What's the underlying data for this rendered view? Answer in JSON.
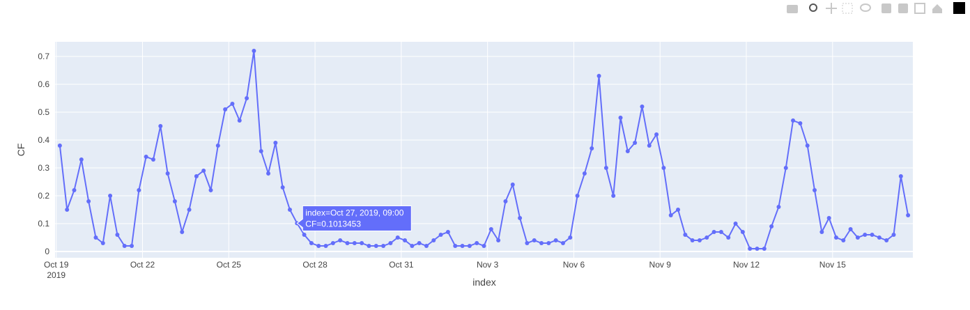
{
  "chart_data": {
    "type": "line",
    "x_label": "index",
    "y_label": "CF",
    "xlim": [
      "2019-10-18 23:00",
      "2019-11-17 19:00"
    ],
    "xticks": [
      {
        "value": "2019-10-19",
        "label": "Oct 19",
        "sublabel": "2019"
      },
      {
        "value": "2019-10-22",
        "label": "Oct 22"
      },
      {
        "value": "2019-10-25",
        "label": "Oct 25"
      },
      {
        "value": "2019-10-28",
        "label": "Oct 28"
      },
      {
        "value": "2019-10-31",
        "label": "Oct 31"
      },
      {
        "value": "2019-11-03",
        "label": "Nov 3"
      },
      {
        "value": "2019-11-06",
        "label": "Nov 6"
      },
      {
        "value": "2019-11-09",
        "label": "Nov 9"
      },
      {
        "value": "2019-11-12",
        "label": "Nov 12"
      },
      {
        "value": "2019-11-15",
        "label": "Nov 15"
      }
    ],
    "ylim": [
      -0.0225,
      0.7525
    ],
    "yticks": [
      0,
      0.1,
      0.2,
      0.3,
      0.4,
      0.5,
      0.6,
      0.7
    ],
    "grid": true,
    "x": [
      "2019-10-19 03:00",
      "2019-10-19 09:00",
      "2019-10-19 15:00",
      "2019-10-19 21:00",
      "2019-10-20 03:00",
      "2019-10-20 09:00",
      "2019-10-20 15:00",
      "2019-10-20 21:00",
      "2019-10-21 03:00",
      "2019-10-21 09:00",
      "2019-10-21 15:00",
      "2019-10-21 21:00",
      "2019-10-22 03:00",
      "2019-10-22 09:00",
      "2019-10-22 15:00",
      "2019-10-22 21:00",
      "2019-10-23 03:00",
      "2019-10-23 09:00",
      "2019-10-23 15:00",
      "2019-10-23 21:00",
      "2019-10-24 03:00",
      "2019-10-24 09:00",
      "2019-10-24 15:00",
      "2019-10-24 21:00",
      "2019-10-25 03:00",
      "2019-10-25 09:00",
      "2019-10-25 15:00",
      "2019-10-25 21:00",
      "2019-10-26 03:00",
      "2019-10-26 09:00",
      "2019-10-26 15:00",
      "2019-10-26 21:00",
      "2019-10-27 03:00",
      "2019-10-27 09:00",
      "2019-10-27 15:00",
      "2019-10-27 21:00",
      "2019-10-28 03:00",
      "2019-10-28 09:00",
      "2019-10-28 15:00",
      "2019-10-28 21:00",
      "2019-10-29 03:00",
      "2019-10-29 09:00",
      "2019-10-29 15:00",
      "2019-10-29 21:00",
      "2019-10-30 03:00",
      "2019-10-30 09:00",
      "2019-10-30 15:00",
      "2019-10-30 21:00",
      "2019-10-31 03:00",
      "2019-10-31 09:00",
      "2019-10-31 15:00",
      "2019-10-31 21:00",
      "2019-11-01 03:00",
      "2019-11-01 09:00",
      "2019-11-01 15:00",
      "2019-11-01 21:00",
      "2019-11-02 03:00",
      "2019-11-02 09:00",
      "2019-11-02 15:00",
      "2019-11-02 21:00",
      "2019-11-03 03:00",
      "2019-11-03 09:00",
      "2019-11-03 15:00",
      "2019-11-03 21:00",
      "2019-11-04 03:00",
      "2019-11-04 09:00",
      "2019-11-04 15:00",
      "2019-11-04 21:00",
      "2019-11-05 03:00",
      "2019-11-05 09:00",
      "2019-11-05 15:00",
      "2019-11-05 21:00",
      "2019-11-06 03:00",
      "2019-11-06 09:00",
      "2019-11-06 15:00",
      "2019-11-06 21:00",
      "2019-11-07 03:00",
      "2019-11-07 09:00",
      "2019-11-07 15:00",
      "2019-11-07 21:00",
      "2019-11-08 03:00",
      "2019-11-08 09:00",
      "2019-11-08 15:00",
      "2019-11-08 21:00",
      "2019-11-09 03:00",
      "2019-11-09 09:00",
      "2019-11-09 15:00",
      "2019-11-09 21:00",
      "2019-11-10 03:00",
      "2019-11-10 09:00",
      "2019-11-10 15:00",
      "2019-11-10 21:00",
      "2019-11-11 03:00",
      "2019-11-11 09:00",
      "2019-11-11 15:00",
      "2019-11-11 21:00",
      "2019-11-12 03:00",
      "2019-11-12 09:00",
      "2019-11-12 15:00",
      "2019-11-12 21:00",
      "2019-11-13 03:00",
      "2019-11-13 09:00",
      "2019-11-13 15:00",
      "2019-11-13 21:00",
      "2019-11-14 03:00",
      "2019-11-14 09:00",
      "2019-11-14 15:00",
      "2019-11-14 21:00",
      "2019-11-15 03:00",
      "2019-11-15 09:00",
      "2019-11-15 15:00",
      "2019-11-15 21:00",
      "2019-11-16 03:00",
      "2019-11-16 09:00",
      "2019-11-16 15:00",
      "2019-11-16 21:00",
      "2019-11-17 03:00",
      "2019-11-17 09:00",
      "2019-11-17 15:00"
    ],
    "series": [
      {
        "name": "CF",
        "color": "#636efa",
        "values": [
          0.38,
          0.15,
          0.22,
          0.33,
          0.18,
          0.05,
          0.03,
          0.2,
          0.06,
          0.02,
          0.02,
          0.22,
          0.34,
          0.33,
          0.45,
          0.28,
          0.18,
          0.07,
          0.15,
          0.27,
          0.29,
          0.22,
          0.38,
          0.51,
          0.53,
          0.47,
          0.55,
          0.72,
          0.36,
          0.28,
          0.39,
          0.23,
          0.15,
          0.1013453,
          0.06,
          0.03,
          0.02,
          0.02,
          0.03,
          0.04,
          0.03,
          0.03,
          0.03,
          0.02,
          0.02,
          0.02,
          0.03,
          0.05,
          0.04,
          0.02,
          0.03,
          0.02,
          0.04,
          0.06,
          0.07,
          0.02,
          0.02,
          0.02,
          0.03,
          0.02,
          0.08,
          0.04,
          0.18,
          0.24,
          0.12,
          0.03,
          0.04,
          0.03,
          0.03,
          0.04,
          0.03,
          0.05,
          0.2,
          0.28,
          0.37,
          0.63,
          0.3,
          0.2,
          0.48,
          0.36,
          0.39,
          0.52,
          0.38,
          0.42,
          0.3,
          0.13,
          0.15,
          0.06,
          0.04,
          0.04,
          0.05,
          0.07,
          0.07,
          0.05,
          0.1,
          0.07,
          0.01,
          0.01,
          0.01,
          0.09,
          0.16,
          0.3,
          0.47,
          0.46,
          0.38,
          0.22,
          0.07,
          0.12,
          0.05,
          0.04,
          0.08,
          0.05,
          0.06,
          0.06,
          0.05,
          0.04,
          0.06,
          0.27,
          0.13
        ]
      }
    ],
    "hover": {
      "index": 33,
      "lines": [
        "index=Oct 27, 2019, 09:00",
        "CF=0.1013453"
      ]
    }
  }
}
